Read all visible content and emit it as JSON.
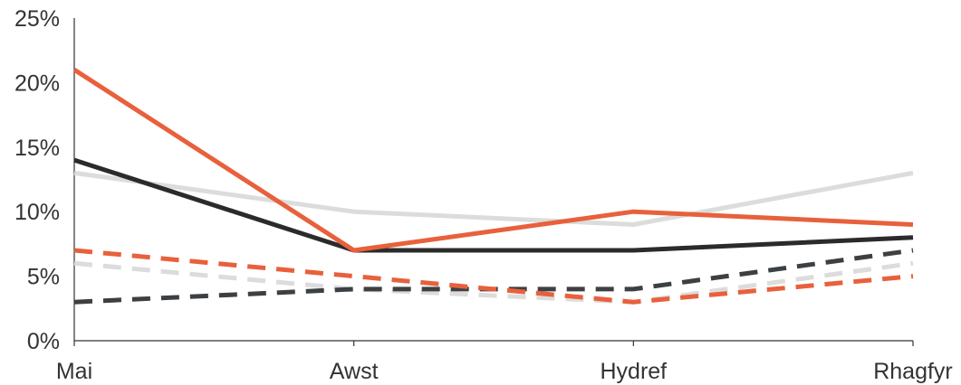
{
  "chart_data": {
    "type": "line",
    "categories": [
      "Mai",
      "Awst",
      "Hydref",
      "Rhagfyr"
    ],
    "ylim": [
      0,
      25
    ],
    "y_ticks": [
      0,
      5,
      10,
      15,
      20,
      25
    ],
    "y_tick_format": "%",
    "grid": false,
    "legend": "none",
    "series": [
      {
        "values": [
          13,
          10,
          9,
          13
        ],
        "color": "#dcdcdc",
        "dashed": false
      },
      {
        "values": [
          14,
          7,
          7,
          8
        ],
        "color": "#2b2b2b",
        "dashed": false
      },
      {
        "values": [
          21,
          7,
          10,
          9
        ],
        "color": "#e8603c",
        "dashed": false
      },
      {
        "values": [
          6,
          4,
          3,
          6
        ],
        "color": "#dcdcdc",
        "dashed": true
      },
      {
        "values": [
          3,
          4,
          4,
          7
        ],
        "color": "#3d4043",
        "dashed": true
      },
      {
        "values": [
          7,
          5,
          3,
          5
        ],
        "color": "#e8603c",
        "dashed": true
      }
    ]
  }
}
